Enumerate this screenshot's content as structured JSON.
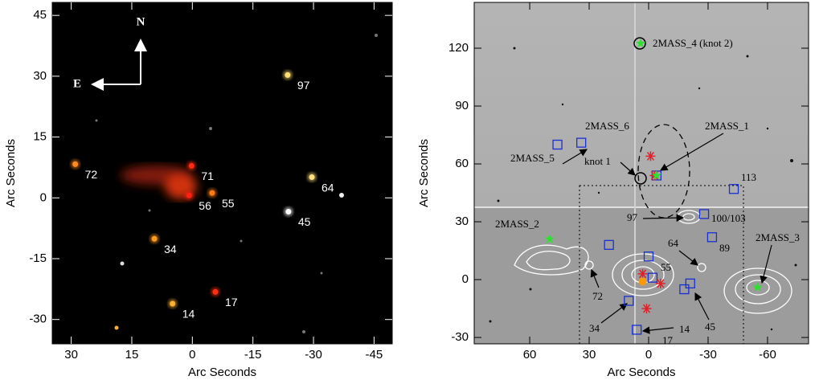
{
  "chart_data": [
    {
      "type": "image",
      "xlabel": "Arc Seconds",
      "ylabel": "Arc Seconds",
      "xlim": [
        34.7,
        -49.5
      ],
      "ylim": [
        -36,
        48.2
      ],
      "xticks": [
        30,
        15,
        0,
        -15,
        -30,
        -45
      ],
      "yticks": [
        -30,
        -15,
        0,
        15,
        30,
        45
      ],
      "compass": {
        "north": "N",
        "east": "E"
      },
      "sources": {
        "labels": [
          "97",
          "72",
          "71",
          "55",
          "56",
          "64",
          "45",
          "34",
          "14",
          "17"
        ],
        "x": [
          -23.6,
          29,
          0.2,
          -4.9,
          0.8,
          -29.6,
          -23.8,
          9.4,
          4.9,
          -5.7
        ],
        "y": [
          30.3,
          8.3,
          7.9,
          1.2,
          0.6,
          5.1,
          -3.4,
          -10.1,
          -26.1,
          -23.2
        ],
        "colors": [
          "#ffe070",
          "#ff8a20",
          "#ff2a10",
          "#ff7a10",
          "#ff2010",
          "#ffe080",
          "#ffffff",
          "#ff9a20",
          "#ffb030",
          "#ff3010"
        ]
      }
    },
    {
      "type": "image",
      "xlabel": "Arc Seconds",
      "ylabel": "Arc Seconds",
      "xlim": [
        88,
        -80.7
      ],
      "ylim": [
        -33.3,
        143.75
      ],
      "xticks": [
        60,
        30,
        0,
        -30,
        -60
      ],
      "yticks": [
        -30,
        0,
        30,
        60,
        90,
        120
      ],
      "annotations": [
        "2MASS_4 (knot 2)",
        "2MASS_6",
        "2MASS_1",
        "2MASS_5",
        "knot 1",
        "113",
        "97",
        "100/103",
        "89",
        "2MASS_2",
        "64",
        "2MASS_3",
        "72",
        "55",
        "34",
        "17",
        "14",
        "45"
      ],
      "series": [
        {
          "marker": "square",
          "color": "#1a2fd0",
          "x": [
            46,
            34,
            -4,
            -43,
            -28,
            -32,
            20,
            0,
            -2,
            -21,
            -18,
            10,
            6
          ],
          "y": [
            70,
            71,
            54,
            47,
            34,
            22,
            18,
            12,
            1,
            -2,
            -5,
            -11,
            -26
          ]
        },
        {
          "marker": "asterisk",
          "color": "#e0202a",
          "x": [
            -1,
            -3,
            3,
            -6,
            1
          ],
          "y": [
            64,
            54,
            3,
            -2,
            -15
          ]
        },
        {
          "marker": "star",
          "color": "#30e030",
          "x": [
            4,
            -4,
            50,
            -55
          ],
          "y": [
            122.5,
            54,
            21,
            -4
          ]
        },
        {
          "marker": "dot",
          "color": "#ff9900",
          "x": [
            3
          ],
          "y": [
            -1
          ]
        }
      ]
    }
  ]
}
